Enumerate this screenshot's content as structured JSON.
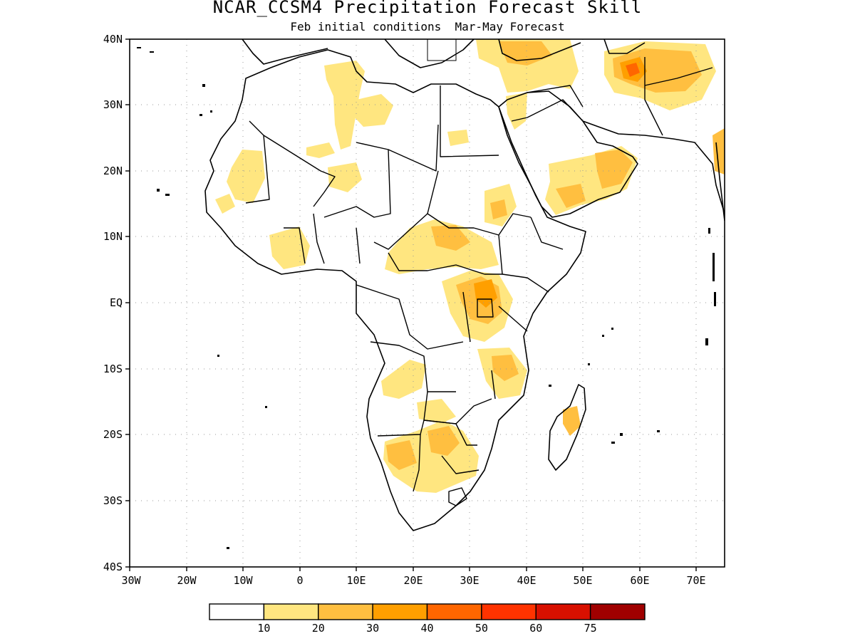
{
  "title": "NCAR_CCSM4 Precipitation Forecast Skill",
  "subtitle": "Feb initial conditions  Mar-May Forecast",
  "lat_labels": [
    "40N",
    "30N",
    "20N",
    "10N",
    "EQ",
    "10S",
    "20S",
    "30S",
    "40S"
  ],
  "lon_labels": [
    "30W",
    "20W",
    "10W",
    "0",
    "10E",
    "20E",
    "30E",
    "40E",
    "50E",
    "60E",
    "70E"
  ],
  "colorbar": {
    "labels": [
      "10",
      "20",
      "30",
      "40",
      "50",
      "60",
      "75"
    ],
    "colors": [
      "#ffffff",
      "#ffe680",
      "#ffbf40",
      "#ff9f00",
      "#ff6600",
      "#ff3300",
      "#d81000",
      "#a00000"
    ]
  },
  "map_extent": {
    "lon": [
      -30,
      75
    ],
    "lat": [
      -40,
      40
    ]
  },
  "colors": {
    "land_outline": "#000000",
    "grid": "#999999"
  }
}
